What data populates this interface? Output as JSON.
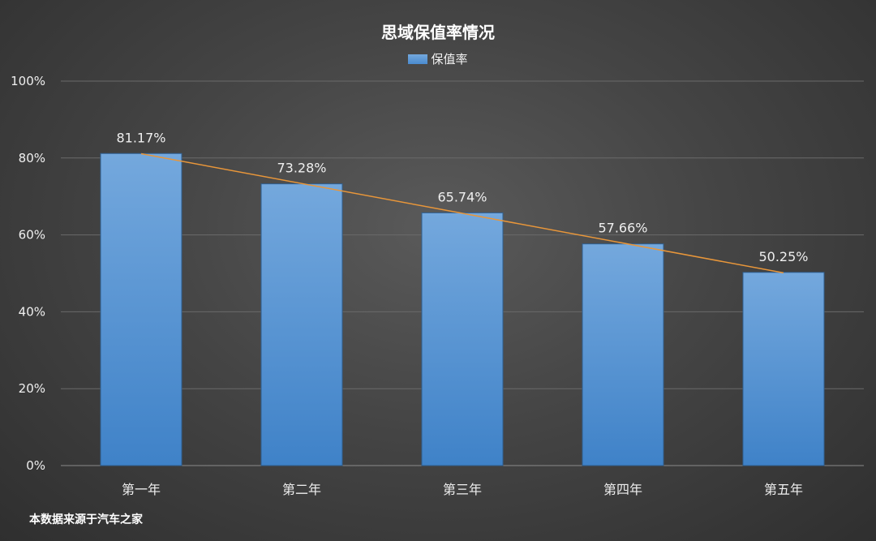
{
  "chart_data": {
    "type": "bar",
    "title": "思域保值率情况",
    "categories": [
      "第一年",
      "第二年",
      "第三年",
      "第四年",
      "第五年"
    ],
    "series": [
      {
        "name": "保值率",
        "values": [
          81.17,
          73.28,
          65.74,
          57.66,
          50.25
        ],
        "data_labels": [
          "81.17%",
          "73.28%",
          "65.74%",
          "57.66%",
          "50.25%"
        ]
      }
    ],
    "trendline": {
      "type": "linear",
      "color": "#e8963a"
    },
    "ylim": [
      0,
      100
    ],
    "yticks": [
      0,
      20,
      40,
      60,
      80,
      100
    ],
    "ytick_labels": [
      "0%",
      "20%",
      "40%",
      "60%",
      "80%",
      "100%"
    ],
    "grid": true,
    "legend_position": "top-center",
    "colors": {
      "bar_top": "#74a8dd",
      "bar_bottom": "#3f82c8",
      "grid": "#6a6a6a"
    }
  },
  "footnote": "本数据来源于汽车之家"
}
